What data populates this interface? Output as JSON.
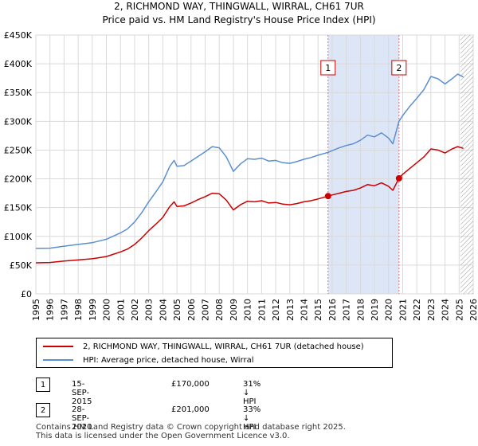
{
  "title": "2, RICHMOND WAY, THINGWALL, WIRRAL, CH61 7UR",
  "subtitle": "Price paid vs. HM Land Registry's House Price Index (HPI)",
  "colors": {
    "property": "#cc0000",
    "hpi": "#5b8fd1",
    "band": "#dde6f7",
    "grid": "#d9d9d9",
    "marker_line": "#e07070"
  },
  "chart_data": {
    "type": "line",
    "x_range": [
      1995,
      2026
    ],
    "ylim": [
      0,
      450000
    ],
    "y_ticks": [
      0,
      50000,
      100000,
      150000,
      200000,
      250000,
      300000,
      350000,
      400000,
      450000
    ],
    "y_tick_labels": [
      "£0",
      "£50K",
      "£100K",
      "£150K",
      "£200K",
      "£250K",
      "£300K",
      "£350K",
      "£400K",
      "£450K"
    ],
    "x_ticks": [
      "1995",
      "1996",
      "1997",
      "1998",
      "1999",
      "2000",
      "2001",
      "2002",
      "2003",
      "2004",
      "2005",
      "2006",
      "2007",
      "2008",
      "2009",
      "2010",
      "2011",
      "2012",
      "2013",
      "2014",
      "2015",
      "2016",
      "2017",
      "2018",
      "2019",
      "2020",
      "2021",
      "2022",
      "2023",
      "2024",
      "2025",
      "2026"
    ],
    "grid": true,
    "shaded_band": [
      2015.71,
      2020.74
    ],
    "hatched_from": 2025.1,
    "series": [
      {
        "name": "2, RICHMOND WAY, THINGWALL, WIRRAL, CH61 7UR (detached house)",
        "color": "#cc0000",
        "points": [
          [
            1995.0,
            54000
          ],
          [
            1996.0,
            54500
          ],
          [
            1997.0,
            57000
          ],
          [
            1998.0,
            59000
          ],
          [
            1999.0,
            61000
          ],
          [
            2000.0,
            65000
          ],
          [
            2001.0,
            73000
          ],
          [
            2001.5,
            78000
          ],
          [
            2002.0,
            86000
          ],
          [
            2002.5,
            97000
          ],
          [
            2003.0,
            110000
          ],
          [
            2003.5,
            121000
          ],
          [
            2004.0,
            133000
          ],
          [
            2004.5,
            152000
          ],
          [
            2004.8,
            160000
          ],
          [
            2005.0,
            152000
          ],
          [
            2005.5,
            153000
          ],
          [
            2006.0,
            158000
          ],
          [
            2006.5,
            164000
          ],
          [
            2007.0,
            169000
          ],
          [
            2007.5,
            175000
          ],
          [
            2008.0,
            174000
          ],
          [
            2008.5,
            163000
          ],
          [
            2009.0,
            146000
          ],
          [
            2009.5,
            155000
          ],
          [
            2010.0,
            161000
          ],
          [
            2010.5,
            160000
          ],
          [
            2011.0,
            162000
          ],
          [
            2011.5,
            158000
          ],
          [
            2012.0,
            159000
          ],
          [
            2012.5,
            156000
          ],
          [
            2013.0,
            155000
          ],
          [
            2013.5,
            157000
          ],
          [
            2014.0,
            160000
          ],
          [
            2014.5,
            162000
          ],
          [
            2015.0,
            165000
          ],
          [
            2015.71,
            170000
          ],
          [
            2016.0,
            172000
          ],
          [
            2016.5,
            175000
          ],
          [
            2017.0,
            178000
          ],
          [
            2017.5,
            180000
          ],
          [
            2018.0,
            184000
          ],
          [
            2018.5,
            190000
          ],
          [
            2019.0,
            188000
          ],
          [
            2019.5,
            193000
          ],
          [
            2020.0,
            187000
          ],
          [
            2020.3,
            180000
          ],
          [
            2020.74,
            201000
          ],
          [
            2021.0,
            208000
          ],
          [
            2021.5,
            218000
          ],
          [
            2022.0,
            228000
          ],
          [
            2022.5,
            238000
          ],
          [
            2023.0,
            252000
          ],
          [
            2023.5,
            250000
          ],
          [
            2024.0,
            245000
          ],
          [
            2024.5,
            252000
          ],
          [
            2024.9,
            256000
          ],
          [
            2025.3,
            253000
          ]
        ]
      },
      {
        "name": "HPI: Average price, detached house, Wirral",
        "color": "#5b8fd1",
        "points": [
          [
            1995.0,
            79000
          ],
          [
            1996.0,
            79500
          ],
          [
            1997.0,
            83000
          ],
          [
            1998.0,
            86000
          ],
          [
            1999.0,
            89000
          ],
          [
            2000.0,
            95000
          ],
          [
            2001.0,
            106000
          ],
          [
            2001.5,
            113000
          ],
          [
            2002.0,
            125000
          ],
          [
            2002.5,
            141000
          ],
          [
            2003.0,
            160000
          ],
          [
            2003.5,
            177000
          ],
          [
            2004.0,
            195000
          ],
          [
            2004.5,
            222000
          ],
          [
            2004.8,
            232000
          ],
          [
            2005.0,
            222000
          ],
          [
            2005.5,
            223000
          ],
          [
            2006.0,
            231000
          ],
          [
            2006.5,
            239000
          ],
          [
            2007.0,
            247000
          ],
          [
            2007.5,
            256000
          ],
          [
            2008.0,
            254000
          ],
          [
            2008.5,
            238000
          ],
          [
            2009.0,
            213000
          ],
          [
            2009.5,
            226000
          ],
          [
            2010.0,
            235000
          ],
          [
            2010.5,
            234000
          ],
          [
            2011.0,
            236000
          ],
          [
            2011.5,
            231000
          ],
          [
            2012.0,
            232000
          ],
          [
            2012.5,
            228000
          ],
          [
            2013.0,
            227000
          ],
          [
            2013.5,
            230000
          ],
          [
            2014.0,
            234000
          ],
          [
            2014.5,
            237000
          ],
          [
            2015.0,
            241000
          ],
          [
            2015.71,
            246000
          ],
          [
            2016.0,
            249000
          ],
          [
            2016.5,
            254000
          ],
          [
            2017.0,
            258000
          ],
          [
            2017.5,
            261000
          ],
          [
            2018.0,
            267000
          ],
          [
            2018.5,
            276000
          ],
          [
            2019.0,
            273000
          ],
          [
            2019.5,
            280000
          ],
          [
            2020.0,
            271000
          ],
          [
            2020.3,
            261000
          ],
          [
            2020.74,
            300000
          ],
          [
            2021.0,
            310000
          ],
          [
            2021.5,
            326000
          ],
          [
            2022.0,
            340000
          ],
          [
            2022.5,
            355000
          ],
          [
            2023.0,
            378000
          ],
          [
            2023.5,
            374000
          ],
          [
            2024.0,
            365000
          ],
          [
            2024.5,
            374000
          ],
          [
            2024.9,
            382000
          ],
          [
            2025.3,
            377000
          ]
        ]
      }
    ],
    "sales": [
      {
        "label": "1",
        "x": 2015.71,
        "value": 170000
      },
      {
        "label": "2",
        "x": 2020.74,
        "value": 201000
      }
    ]
  },
  "legend": {
    "property_label": "2, RICHMOND WAY, THINGWALL, WIRRAL, CH61 7UR (detached house)",
    "hpi_label": "HPI: Average price, detached house, Wirral"
  },
  "sales_table": [
    {
      "badge": "1",
      "date": "15-SEP-2015",
      "price": "£170,000",
      "hpi": "31% ↓ HPI"
    },
    {
      "badge": "2",
      "date": "28-SEP-2020",
      "price": "£201,000",
      "hpi": "33% ↓ HPI"
    }
  ],
  "footer": {
    "line1": "Contains HM Land Registry data © Crown copyright and database right 2025.",
    "line2": "This data is licensed under the Open Government Licence v3.0."
  }
}
